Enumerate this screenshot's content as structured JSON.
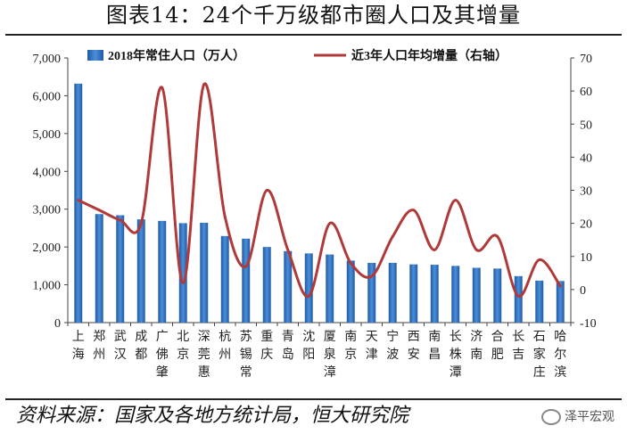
{
  "title": "图表14：24个千万级都市圈人口及其增量",
  "source": "资料来源：国家及各地方统计局，恒大研究院",
  "watermark": "泽平宏观",
  "colors": {
    "bar": "#2f74c0",
    "line": "#b03a3a"
  },
  "chart_data": {
    "type": "bar+line",
    "categories": [
      "上海",
      "郑州",
      "武汉",
      "成都",
      "广佛肇",
      "北京",
      "深莞惠",
      "杭州",
      "苏锡常",
      "重庆",
      "青岛",
      "沈阳",
      "厦泉漳",
      "南京",
      "天津",
      "宁波",
      "西安",
      "南昌",
      "长株潭",
      "济南",
      "合肥",
      "长吉",
      "石家庄",
      "哈尔滨"
    ],
    "series": [
      {
        "name": "2018年常住人口（万人）",
        "type": "bar",
        "axis": "left",
        "values": [
          6320,
          2870,
          2840,
          2730,
          2690,
          2630,
          2640,
          2290,
          2220,
          2000,
          1890,
          1830,
          1800,
          1640,
          1580,
          1580,
          1540,
          1530,
          1500,
          1450,
          1430,
          1230,
          1110,
          1100
        ]
      },
      {
        "name": "近3年人口年均增量（右轴）",
        "type": "line",
        "axis": "right",
        "values": [
          27,
          24,
          21,
          20,
          61,
          2,
          62,
          22,
          7,
          30,
          12,
          -2,
          20,
          8,
          4,
          16,
          24,
          12,
          27,
          12,
          16,
          -2,
          9,
          1
        ]
      }
    ],
    "y_left": {
      "min": 0,
      "max": 7000,
      "step": 1000
    },
    "y_right": {
      "min": -10,
      "max": 70,
      "step": 10
    },
    "legend_position": "top"
  }
}
